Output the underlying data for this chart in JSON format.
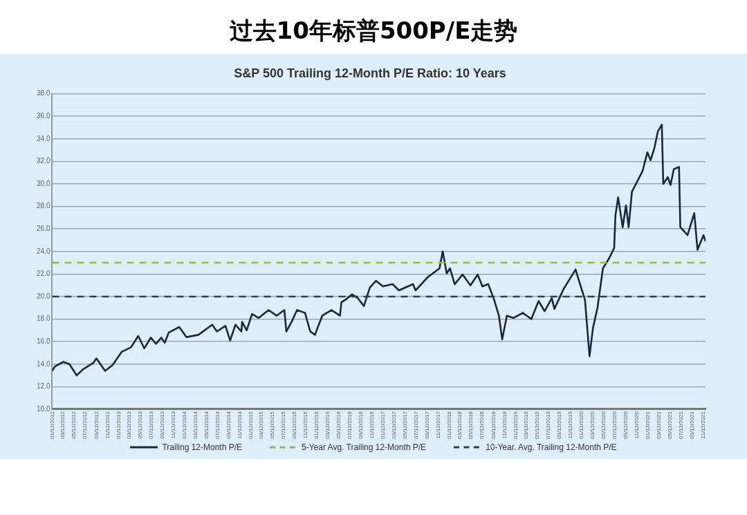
{
  "chart_data": {
    "type": "line",
    "title": "过去10年标普500P/E走势",
    "subtitle": "S&P 500 Trailing 12-Month P/E Ratio: 10 Years",
    "x": [
      "2012-01-12",
      "2012-01-27",
      "2012-03-14",
      "2012-04-16",
      "2012-05-26",
      "2012-07-01",
      "2012-08-25",
      "2012-09-12",
      "2012-10-30",
      "2012-12-09",
      "2013-01-30",
      "2013-03-22",
      "2013-05-01",
      "2013-06-03",
      "2013-07-09",
      "2013-08-07",
      "2013-09-05",
      "2013-09-24",
      "2013-10-16",
      "2013-12-13",
      "2014-01-22",
      "2014-03-29",
      "2014-06-13",
      "2014-07-09",
      "2014-08-25",
      "2014-09-20",
      "2014-10-19",
      "2014-11-21",
      "2014-11-25",
      "2014-12-20",
      "2015-01-19",
      "2015-02-24",
      "2015-04-20",
      "2015-06-03",
      "2015-07-16",
      "2015-07-27",
      "2015-08-25",
      "2015-09-24",
      "2015-11-07",
      "2015-12-06",
      "2016-01-01",
      "2016-02-10",
      "2016-04-01",
      "2016-05-18",
      "2016-05-26",
      "2016-06-21",
      "2016-07-24",
      "2016-08-25",
      "2016-09-27",
      "2016-10-30",
      "2016-12-03",
      "2017-01-10",
      "2017-03-04",
      "2017-04-09",
      "2017-06-25",
      "2017-07-09",
      "2017-09-13",
      "2017-11-18",
      "2017-12-06",
      "2017-12-28",
      "2018-01-15",
      "2018-02-10",
      "2018-03-26",
      "2018-05-08",
      "2018-06-17",
      "2018-07-13",
      "2018-08-14",
      "2018-09-16",
      "2018-10-12",
      "2018-10-30",
      "2018-11-25",
      "2019-01-01",
      "2019-02-21",
      "2019-04-09",
      "2019-05-19",
      "2019-06-21",
      "2019-07-31",
      "2019-08-14",
      "2019-10-05",
      "2019-12-09",
      "2019-12-24",
      "2020-01-30",
      "2020-02-24",
      "2020-03-14",
      "2020-04-08",
      "2020-05-08",
      "2020-06-13",
      "2020-07-09",
      "2020-07-16",
      "2020-07-31",
      "2020-08-25",
      "2020-09-12",
      "2020-09-27",
      "2020-10-15",
      "2020-12-13",
      "2021-01-08",
      "2021-01-26",
      "2021-02-17",
      "2021-03-07",
      "2021-03-29",
      "2021-04-06",
      "2021-05-01",
      "2021-05-16",
      "2021-06-03",
      "2021-07-02",
      "2021-07-09",
      "2021-08-18",
      "2021-09-24",
      "2021-10-12",
      "2021-11-14",
      "2021-11-25"
    ],
    "series": [
      {
        "name": "Trailing 12-Month P/E",
        "color": "#1c2541",
        "values": [
          13.4,
          13.8,
          14.2,
          14.0,
          13.0,
          13.55,
          14.1,
          14.5,
          13.4,
          13.9,
          15.1,
          15.5,
          16.5,
          15.4,
          16.35,
          15.8,
          16.35,
          15.9,
          16.8,
          17.3,
          16.4,
          16.6,
          17.5,
          16.9,
          17.4,
          16.1,
          17.5,
          16.9,
          17.75,
          17.0,
          18.45,
          18.1,
          18.8,
          18.3,
          18.8,
          16.9,
          17.75,
          18.8,
          18.55,
          16.9,
          16.6,
          18.3,
          18.8,
          18.3,
          19.5,
          19.75,
          20.2,
          19.85,
          19.15,
          20.8,
          21.4,
          20.9,
          21.1,
          20.55,
          21.1,
          20.55,
          21.7,
          22.5,
          24.0,
          22.05,
          22.5,
          21.1,
          21.95,
          21.0,
          21.95,
          20.9,
          21.1,
          19.7,
          18.3,
          16.2,
          18.3,
          18.1,
          18.55,
          18.0,
          19.6,
          18.7,
          19.85,
          18.9,
          20.7,
          22.4,
          21.6,
          19.7,
          14.7,
          17.2,
          19.0,
          22.5,
          23.45,
          24.3,
          27.2,
          28.8,
          26.15,
          28.1,
          26.15,
          29.3,
          31.15,
          32.8,
          32.1,
          33.25,
          34.65,
          35.25,
          30.0,
          30.6,
          29.9,
          31.3,
          31.5,
          26.15,
          25.45,
          27.4,
          24.15,
          25.45,
          24.9
        ]
      }
    ],
    "ref_lines": [
      {
        "axis": "y",
        "value": 23.0,
        "label": "5-Year Avg. Trailing 12-Month P/E",
        "color": "#9bbb3b",
        "line_style": "dashed"
      },
      {
        "axis": "y",
        "value": 20.0,
        "label": "10-Year. Avg. Trailing 12-Month P/E",
        "color": "#2e3f55",
        "line_style": "dashed"
      }
    ],
    "xlim": [
      "2012-01-12",
      "2021-11-25"
    ],
    "xticks": [
      {
        "value": "2012-01-12",
        "label": "01/12/2012"
      },
      {
        "value": "2012-03-12",
        "label": "03/12/2012"
      },
      {
        "value": "2012-05-12",
        "label": "05/12/2012"
      },
      {
        "value": "2012-07-12",
        "label": "07/12/2012"
      },
      {
        "value": "2012-09-12",
        "label": "09/12/2012"
      },
      {
        "value": "2012-11-12",
        "label": "11/12/2012"
      },
      {
        "value": "2013-01-12",
        "label": "01/12/2013"
      },
      {
        "value": "2013-03-12",
        "label": "03/12/2013"
      },
      {
        "value": "2013-05-12",
        "label": "05/12/2013"
      },
      {
        "value": "2013-07-12",
        "label": "07/12/2013"
      },
      {
        "value": "2013-09-12",
        "label": "09/12/2013"
      },
      {
        "value": "2013-11-12",
        "label": "11/12/2013"
      },
      {
        "value": "2014-01-12",
        "label": "01/12/2014"
      },
      {
        "value": "2014-03-12",
        "label": "03/12/2014"
      },
      {
        "value": "2014-05-12",
        "label": "05/12/2014"
      },
      {
        "value": "2014-07-12",
        "label": "07/12/2014"
      },
      {
        "value": "2014-09-12",
        "label": "09/12/2014"
      },
      {
        "value": "2014-11-12",
        "label": "11/12/2014"
      },
      {
        "value": "2015-01-12",
        "label": "01/12/2015"
      },
      {
        "value": "2015-03-12",
        "label": "03/12/2015"
      },
      {
        "value": "2015-05-12",
        "label": "05/12/2015"
      },
      {
        "value": "2015-07-12",
        "label": "07/12/2015"
      },
      {
        "value": "2015-09-12",
        "label": "09/12/2015"
      },
      {
        "value": "2015-11-12",
        "label": "11/12/2015"
      },
      {
        "value": "2016-01-12",
        "label": "01/12/2016"
      },
      {
        "value": "2016-03-12",
        "label": "03/12/2016"
      },
      {
        "value": "2016-05-12",
        "label": "05/12/2016"
      },
      {
        "value": "2016-07-12",
        "label": "07/12/2016"
      },
      {
        "value": "2016-09-12",
        "label": "09/12/2016"
      },
      {
        "value": "2016-11-12",
        "label": "11/12/2016"
      },
      {
        "value": "2017-01-12",
        "label": "01/12/2017"
      },
      {
        "value": "2017-03-12",
        "label": "03/12/2017"
      },
      {
        "value": "2017-05-12",
        "label": "05/12/2017"
      },
      {
        "value": "2017-07-12",
        "label": "07/12/2017"
      },
      {
        "value": "2017-09-12",
        "label": "09/12/2017"
      },
      {
        "value": "2017-11-12",
        "label": "11/12/2017"
      },
      {
        "value": "2018-01-12",
        "label": "01/12/2018"
      },
      {
        "value": "2018-03-12",
        "label": "03/12/2018"
      },
      {
        "value": "2018-05-12",
        "label": "05/12/2018"
      },
      {
        "value": "2018-07-12",
        "label": "07/12/2018"
      },
      {
        "value": "2018-09-12",
        "label": "09/12/2018"
      },
      {
        "value": "2018-11-12",
        "label": "11/12/2018"
      },
      {
        "value": "2019-01-12",
        "label": "01/12/2019"
      },
      {
        "value": "2019-03-12",
        "label": "03/12/2019"
      },
      {
        "value": "2019-05-12",
        "label": "05/12/2019"
      },
      {
        "value": "2019-07-12",
        "label": "07/12/2019"
      },
      {
        "value": "2019-09-12",
        "label": "09/12/2019"
      },
      {
        "value": "2019-11-12",
        "label": "11/12/2019"
      },
      {
        "value": "2020-01-12",
        "label": "01/12/2020"
      },
      {
        "value": "2020-03-12",
        "label": "03/12/2020"
      },
      {
        "value": "2020-05-12",
        "label": "05/12/2020"
      },
      {
        "value": "2020-07-12",
        "label": "07/12/2020"
      },
      {
        "value": "2020-09-12",
        "label": "09/12/2020"
      },
      {
        "value": "2020-11-12",
        "label": "11/12/2020"
      },
      {
        "value": "2021-01-12",
        "label": "01/12/2021"
      },
      {
        "value": "2021-03-12",
        "label": "03/12/2021"
      },
      {
        "value": "2021-05-12",
        "label": "05/12/2021"
      },
      {
        "value": "2021-07-12",
        "label": "07/12/2021"
      },
      {
        "value": "2021-09-12",
        "label": "09/12/2021"
      },
      {
        "value": "2021-11-12",
        "label": "11/12/2021"
      }
    ],
    "ylim": [
      10,
      38
    ],
    "yticks": [
      {
        "value": 10,
        "label": "10.0"
      },
      {
        "value": 12,
        "label": "12.0"
      },
      {
        "value": 14,
        "label": "14.0"
      },
      {
        "value": 16,
        "label": "16.0"
      },
      {
        "value": 18,
        "label": "18.0"
      },
      {
        "value": 20,
        "label": "20.0"
      },
      {
        "value": 22,
        "label": "22.0"
      },
      {
        "value": 24,
        "label": "24.0"
      },
      {
        "value": 26,
        "label": "26.0"
      },
      {
        "value": 28,
        "label": "28.0"
      },
      {
        "value": 30,
        "label": "30.0"
      },
      {
        "value": 32,
        "label": "32.0"
      },
      {
        "value": 34,
        "label": "34.0"
      },
      {
        "value": 36,
        "label": "36.0"
      },
      {
        "value": 38,
        "label": "38.0"
      }
    ],
    "grid": "y",
    "legend": "bottom",
    "marker": "none",
    "line_style": "solid"
  }
}
